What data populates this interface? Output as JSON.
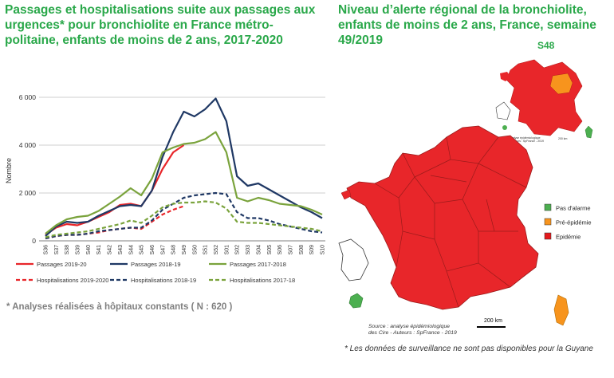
{
  "left_title": "Passages et hospitalisations suite aux passages aux urgences* pour bronchiolite en France métro-politaine, enfants de moins de 2 ans, 2017-2020",
  "right_title": "Niveau d’alerte régional de la bronchiolite, enfants de moins de 2 ans, France, semaine 49/2019",
  "inset_label": "S48",
  "footnote_left": "* Analyses réalisées à hôpitaux constants ( N : 620 )",
  "footnote_right": "* Les données de surveillance ne sont pas disponibles pour la Guyane",
  "map": {
    "legend": [
      {
        "label": "Pas d'alarme",
        "color": "#4caf50"
      },
      {
        "label": "Pré-épidémie",
        "color": "#f7941d"
      },
      {
        "label": "Epidémie",
        "color": "#e31a1c"
      }
    ],
    "source_line1": "Source : analyse épidémiologique",
    "source_line2": "des Cire - Auteurs : SpFrance -  2019",
    "scale": "200 km"
  },
  "colors": {
    "red": "#e8262a",
    "navy": "#1f3864",
    "green": "#7aa33c",
    "title": "#2aa84a"
  },
  "chart_data": {
    "type": "line",
    "ylabel": "Nombre",
    "ylim": [
      0,
      6000
    ],
    "yticks": [
      0,
      2000,
      4000,
      6000
    ],
    "ytick_labels": [
      "0",
      "2 000",
      "4 000",
      "6 000"
    ],
    "categories": [
      "S36",
      "S37",
      "S38",
      "S39",
      "S40",
      "S41",
      "S42",
      "S43",
      "S44",
      "S45",
      "S46",
      "S47",
      "S48",
      "S49",
      "S50",
      "S51",
      "S52",
      "S01",
      "S02",
      "S03",
      "S04",
      "S05",
      "S06",
      "S07",
      "S08",
      "S09",
      "S10"
    ],
    "series": [
      {
        "name": "Passages 2019-20",
        "color": "#e8262a",
        "dashed": false,
        "values": [
          250,
          550,
          700,
          650,
          800,
          1000,
          1200,
          1500,
          1550,
          1450,
          2100,
          3000,
          3700,
          4000,
          null,
          null,
          null,
          null,
          null,
          null,
          null,
          null,
          null,
          null,
          null,
          null,
          null
        ]
      },
      {
        "name": "Passages 2018-19",
        "color": "#1f3864",
        "dashed": false,
        "values": [
          200,
          600,
          800,
          750,
          800,
          1050,
          1250,
          1450,
          1500,
          1450,
          2100,
          3500,
          4550,
          5400,
          5200,
          5500,
          5950,
          5000,
          2700,
          2300,
          2400,
          2150,
          1900,
          1650,
          1400,
          1200,
          950
        ]
      },
      {
        "name": "Passages 2017-2018",
        "color": "#7aa33c",
        "dashed": false,
        "values": [
          300,
          650,
          900,
          1000,
          1050,
          1250,
          1550,
          1850,
          2200,
          1900,
          2600,
          3700,
          3900,
          4050,
          4100,
          4250,
          4550,
          3700,
          1800,
          1650,
          1800,
          1700,
          1550,
          1500,
          1450,
          1300,
          1100
        ]
      },
      {
        "name": "Hospitalisations 2019-2020",
        "color": "#e8262a",
        "dashed": true,
        "values": [
          100,
          200,
          250,
          250,
          300,
          350,
          450,
          500,
          550,
          500,
          800,
          1100,
          1300,
          1450,
          null,
          null,
          null,
          null,
          null,
          null,
          null,
          null,
          null,
          null,
          null,
          null,
          null
        ]
      },
      {
        "name": "Hospitalisations 2018-19",
        "color": "#1f3864",
        "dashed": true,
        "values": [
          100,
          200,
          250,
          250,
          300,
          400,
          450,
          500,
          550,
          550,
          850,
          1300,
          1550,
          1800,
          1900,
          1950,
          2000,
          1950,
          1200,
          950,
          950,
          850,
          700,
          600,
          500,
          400,
          350
        ]
      },
      {
        "name": "Hospitalisations 2017-18",
        "color": "#7aa33c",
        "dashed": true,
        "values": [
          150,
          250,
          300,
          350,
          400,
          500,
          600,
          700,
          850,
          750,
          1050,
          1400,
          1550,
          1600,
          1600,
          1650,
          1600,
          1350,
          800,
          750,
          750,
          700,
          650,
          600,
          550,
          500,
          400
        ]
      }
    ]
  }
}
